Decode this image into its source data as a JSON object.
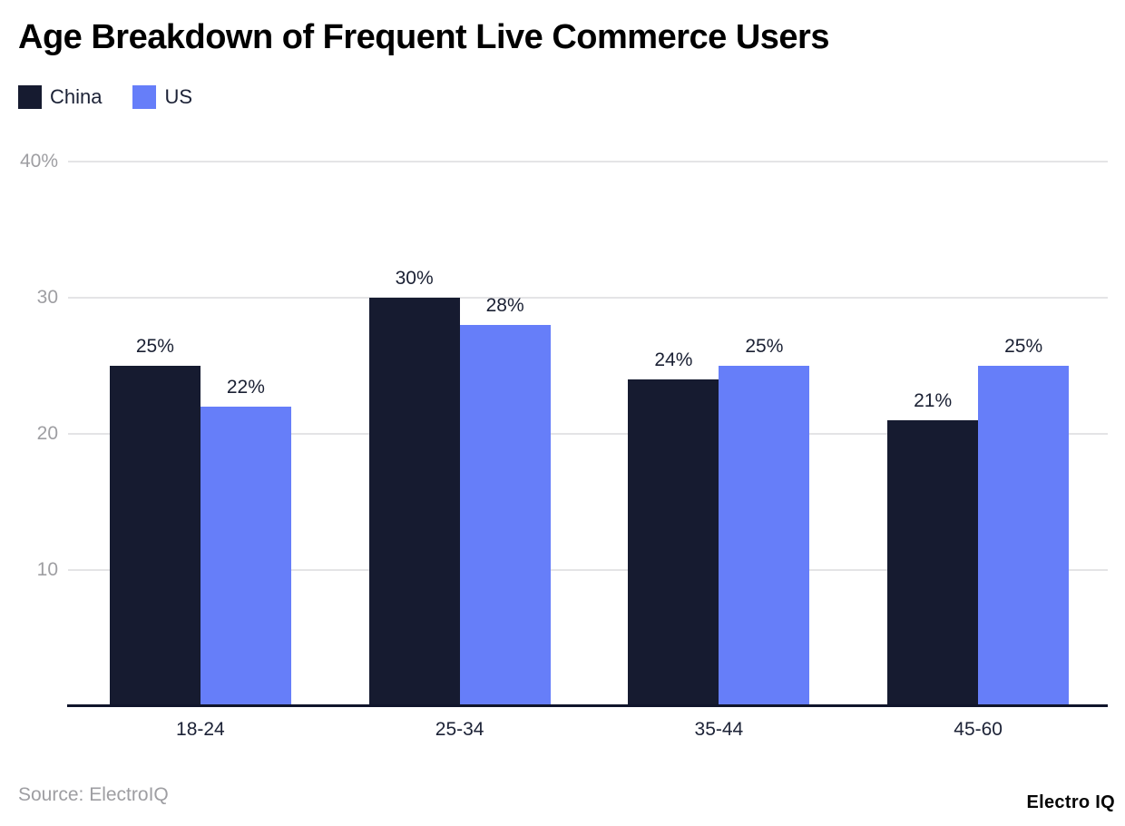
{
  "header": {
    "title": "Age Breakdown of Frequent Live Commerce Users"
  },
  "footer": {
    "source": "Source: ElectroIQ",
    "brand": "Electro IQ"
  },
  "chart_data": {
    "type": "bar",
    "title": "Age Breakdown of Frequent Live Commerce Users",
    "categories": [
      "18-24",
      "25-34",
      "35-44",
      "45-60"
    ],
    "series": [
      {
        "name": "China",
        "color": "#161b30",
        "values": [
          25,
          30,
          24,
          21
        ]
      },
      {
        "name": "US",
        "color": "#667ef9",
        "values": [
          22,
          28,
          25,
          25
        ]
      }
    ],
    "value_suffix": "%",
    "xlabel": "",
    "ylabel": "",
    "ylim": [
      0,
      40
    ],
    "yticks": [
      {
        "value": 10,
        "label": "10"
      },
      {
        "value": 20,
        "label": "20"
      },
      {
        "value": 30,
        "label": "30"
      },
      {
        "value": 40,
        "label": "40%"
      }
    ],
    "grid": true,
    "legend_position": "top-left"
  }
}
